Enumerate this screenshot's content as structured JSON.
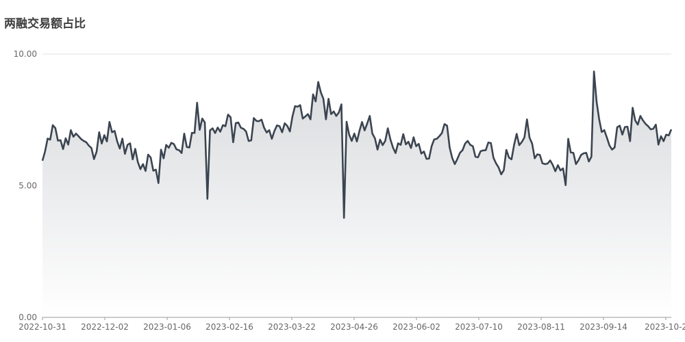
{
  "chart_data": {
    "type": "area",
    "title": "两融交易额占比",
    "xlabel": "",
    "ylabel": "",
    "ylim": [
      0,
      10
    ],
    "yticks": [
      "10.00",
      "5.00",
      "0.00"
    ],
    "xticks": [
      "2022-10-31",
      "2022-12-02",
      "2023-01-06",
      "2023-02-16",
      "2023-03-22",
      "2023-04-26",
      "2023-06-02",
      "2023-07-10",
      "2023-08-11",
      "2023-09-14",
      "2023-10-2"
    ],
    "line_color": "#3b4450",
    "grid": "horizontal",
    "series": [
      {
        "values": [
          5.95,
          6.3,
          6.79,
          6.75,
          7.3,
          7.19,
          6.71,
          6.73,
          6.39,
          6.8,
          6.56,
          7.11,
          6.86,
          6.98,
          6.88,
          6.77,
          6.7,
          6.65,
          6.52,
          6.43,
          6.01,
          6.29,
          7.03,
          6.6,
          6.92,
          6.68,
          7.42,
          7.03,
          7.08,
          6.68,
          6.41,
          6.79,
          6.21,
          6.55,
          6.61,
          6.0,
          6.4,
          5.9,
          5.63,
          5.82,
          5.56,
          6.18,
          6.07,
          5.57,
          5.61,
          5.1,
          6.37,
          6.04,
          6.55,
          6.44,
          6.63,
          6.58,
          6.38,
          6.35,
          6.24,
          6.98,
          6.47,
          6.45,
          7.01,
          7.0,
          8.15,
          7.12,
          7.55,
          7.4,
          4.5,
          7.1,
          7.18,
          7.0,
          7.21,
          7.05,
          7.3,
          7.26,
          7.7,
          7.6,
          6.65,
          7.38,
          7.4,
          7.2,
          7.16,
          7.06,
          6.7,
          6.72,
          7.57,
          7.46,
          7.45,
          7.51,
          7.2,
          7.02,
          7.11,
          6.78,
          7.08,
          7.29,
          7.26,
          7.03,
          7.37,
          7.27,
          7.06,
          7.63,
          8.02,
          8.0,
          8.06,
          7.55,
          7.63,
          7.72,
          7.52,
          8.47,
          8.2,
          8.94,
          8.55,
          8.3,
          7.52,
          8.3,
          7.72,
          7.82,
          7.65,
          7.78,
          8.09,
          3.78,
          7.43,
          6.94,
          6.7,
          6.98,
          6.68,
          7.08,
          7.42,
          7.1,
          7.36,
          7.65,
          6.98,
          6.8,
          6.37,
          6.75,
          6.54,
          6.7,
          7.18,
          6.76,
          6.45,
          6.24,
          6.61,
          6.55,
          6.96,
          6.57,
          6.67,
          6.43,
          6.84,
          6.5,
          6.59,
          6.22,
          6.3,
          6.02,
          6.03,
          6.5,
          6.76,
          6.78,
          6.88,
          7.0,
          7.34,
          7.28,
          6.45,
          6.05,
          5.82,
          6.02,
          6.25,
          6.35,
          6.6,
          6.7,
          6.55,
          6.5,
          6.1,
          6.08,
          6.31,
          6.34,
          6.35,
          6.64,
          6.62,
          6.06,
          5.85,
          5.69,
          5.43,
          5.59,
          6.36,
          6.07,
          6.0,
          6.55,
          6.97,
          6.54,
          6.66,
          6.83,
          7.52,
          6.82,
          6.6,
          6.04,
          6.19,
          6.17,
          5.85,
          5.82,
          5.84,
          5.96,
          5.79,
          5.55,
          5.78,
          5.58,
          5.66,
          5.02,
          6.78,
          6.26,
          6.25,
          5.82,
          5.97,
          6.17,
          6.23,
          6.25,
          5.92,
          6.1,
          9.34,
          8.2,
          7.53,
          7.04,
          7.11,
          6.83,
          6.53,
          6.37,
          6.45,
          7.22,
          7.28,
          6.94,
          7.23,
          7.24,
          6.69,
          7.96,
          7.48,
          7.32,
          7.65,
          7.48,
          7.35,
          7.26,
          7.14,
          7.16,
          7.32,
          6.56,
          6.88,
          6.69,
          6.94,
          6.91,
          7.14
        ]
      }
    ]
  }
}
